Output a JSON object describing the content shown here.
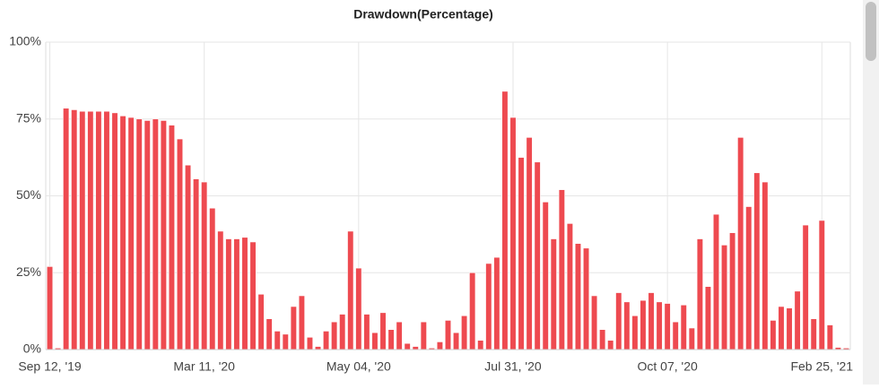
{
  "chart_data": {
    "type": "bar",
    "title": "Drawdown(Percentage)",
    "categories": [
      "Sep 12, '19",
      null,
      null,
      null,
      null,
      null,
      null,
      null,
      null,
      null,
      null,
      null,
      null,
      null,
      null,
      null,
      null,
      null,
      null,
      "Mar 11, '20",
      null,
      null,
      null,
      null,
      null,
      null,
      null,
      null,
      null,
      null,
      null,
      null,
      null,
      null,
      null,
      null,
      null,
      null,
      "May 04, '20",
      null,
      null,
      null,
      null,
      null,
      null,
      null,
      null,
      null,
      null,
      null,
      null,
      null,
      null,
      null,
      null,
      null,
      null,
      "Jul 31, '20",
      null,
      null,
      null,
      null,
      null,
      null,
      null,
      null,
      null,
      null,
      null,
      null,
      null,
      null,
      null,
      null,
      null,
      null,
      "Oct 07, '20",
      null,
      null,
      null,
      null,
      null,
      null,
      null,
      null,
      null,
      null,
      null,
      null,
      null,
      null,
      null,
      null,
      null,
      null,
      "Feb 25, '21",
      null,
      null,
      null
    ],
    "values": [
      27,
      0.5,
      78.5,
      78,
      77.5,
      77.5,
      77.5,
      77.5,
      77,
      76,
      75.5,
      75,
      74.5,
      75,
      74.5,
      73,
      68.5,
      60,
      55.5,
      54.5,
      46,
      38.5,
      36,
      36,
      36.5,
      35,
      18,
      10,
      6,
      5,
      14,
      17.5,
      4,
      1,
      6,
      9,
      11.5,
      38.5,
      26.5,
      11.5,
      5.5,
      12,
      6.5,
      9,
      2,
      1,
      9,
      0.5,
      2.5,
      9.5,
      5.5,
      11,
      25,
      3,
      28,
      30,
      84,
      75.5,
      62.5,
      69,
      61,
      48,
      36,
      52,
      41,
      34.5,
      33,
      17.5,
      6.5,
      3,
      18.5,
      15.5,
      11,
      16,
      18.5,
      15.5,
      15,
      9,
      14.5,
      7,
      36,
      20.5,
      44,
      34,
      38,
      69,
      46.5,
      57.5,
      54.5,
      9.5,
      14,
      13.5,
      19,
      40.5,
      10,
      42,
      8,
      0.7,
      0.5
    ],
    "color": "#ee4a50",
    "ylim": [
      0,
      100
    ],
    "yticks": [
      {
        "value": 0,
        "label": "0%"
      },
      {
        "value": 25,
        "label": "25%"
      },
      {
        "value": 50,
        "label": "50%"
      },
      {
        "value": 75,
        "label": "75%"
      },
      {
        "value": 100,
        "label": "100%"
      }
    ],
    "grid": true
  }
}
